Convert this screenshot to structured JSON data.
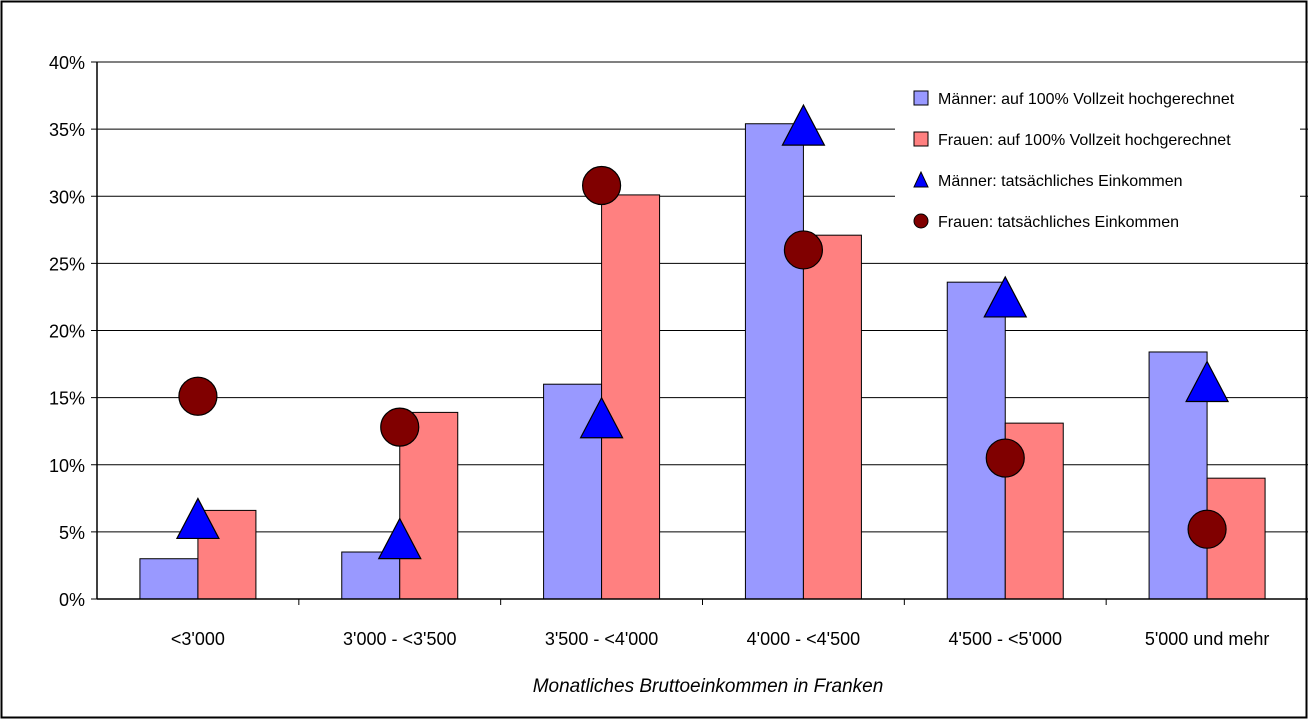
{
  "chart_data": {
    "type": "bar",
    "title": "",
    "xlabel": "Monatliches Bruttoeinkommen in Franken",
    "ylabel": "",
    "ylim": [
      0,
      40
    ],
    "yticks": [
      "0%",
      "5%",
      "10%",
      "15%",
      "20%",
      "25%",
      "30%",
      "35%",
      "40%"
    ],
    "grid": true,
    "legend_position": "top-right",
    "categories": [
      "<3'000",
      "3'000 - <3'500",
      "3'500 - <4'000",
      "4'000 - <4'500",
      "4'500 - <5'000",
      "5'000 und mehr"
    ],
    "series": [
      {
        "name": "Männer: auf 100%  Vollzeit hochgerechnet",
        "kind": "bar",
        "color": "#9999ff",
        "values": [
          3.0,
          3.5,
          16.0,
          35.4,
          23.6,
          18.4
        ]
      },
      {
        "name": "Frauen: auf 100%  Vollzeit hochgerechnet",
        "kind": "bar",
        "color": "#ff8080",
        "values": [
          6.6,
          13.9,
          30.1,
          27.1,
          13.1,
          9.0
        ]
      },
      {
        "name": "Männer: tatsächliches Einkommen",
        "kind": "marker-triangle",
        "color": "#0000ff",
        "values": [
          6.0,
          4.5,
          13.5,
          35.3,
          22.5,
          16.2
        ]
      },
      {
        "name": "Frauen: tatsächliches Einkommen",
        "kind": "marker-circle",
        "color": "#800000",
        "values": [
          15.1,
          12.8,
          30.8,
          26.0,
          10.5,
          5.2
        ]
      }
    ]
  }
}
